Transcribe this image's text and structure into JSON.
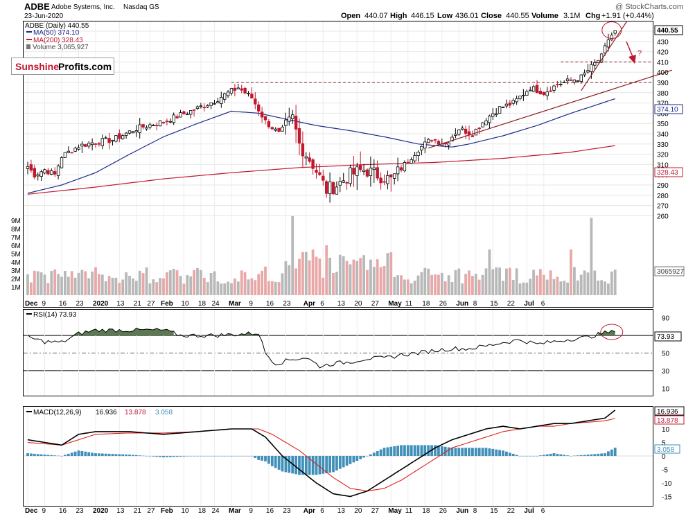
{
  "header": {
    "ticker": "ADBE",
    "company": "Adobe Systems, Inc.",
    "exchange": "Nasdaq GS",
    "date": "23-Jun-2020",
    "watermark": "@ StockCharts.com",
    "quote": {
      "open_label": "Open",
      "open": "440.07",
      "high_label": "High",
      "high": "446.15",
      "low_label": "Low",
      "low": "436.01",
      "close_label": "Close",
      "close": "440.55",
      "volume_label": "Volume",
      "volume": "3.1M",
      "chg_label": "Chg",
      "chg": "+1.91 (+0.44%)"
    }
  },
  "price_panel": {
    "legend": [
      {
        "text": "ADBE (Daily) 440.55",
        "color": "#000000"
      },
      {
        "text": "MA(50) 374.10",
        "color": "#1b2a8a"
      },
      {
        "text": "MA(200) 328.43",
        "color": "#c0182e"
      },
      {
        "text": "Volume 3,065,927",
        "color": "#444444"
      }
    ],
    "logo": {
      "part1": "Sunshine",
      "part2": "Profits.com"
    },
    "annotation": "?",
    "right_labels": [
      "440.55",
      "374.10",
      "328.43",
      "3065927"
    ],
    "volume_labels": [
      "9M",
      "8M",
      "7M",
      "6M",
      "5M",
      "4M",
      "3M",
      "2M",
      "1M"
    ]
  },
  "rsi_panel": {
    "legend": "RSI(14) 73.93",
    "value_label": "73.93",
    "ticks": [
      "90",
      "70",
      "50",
      "30",
      "10"
    ]
  },
  "macd_panel": {
    "legend_name": "MACD(12,26,9)",
    "macd": "16.936",
    "signal": "13.878",
    "hist": "3.058",
    "ticks": [
      "15",
      "10",
      "5",
      "0",
      "-5",
      "-10",
      "-15"
    ]
  },
  "date_labels": [
    "Dec",
    "9",
    "16",
    "23",
    "2020",
    "13",
    "21",
    "27",
    "Feb",
    "10",
    "18",
    "24",
    "Mar",
    "9",
    "16",
    "23",
    "Apr",
    "6",
    "13",
    "20",
    "27",
    "May",
    "11",
    "18",
    "26",
    "Jun",
    "8",
    "15",
    "22",
    "Jul",
    "6"
  ],
  "colors": {
    "up": "#000000",
    "down": "#c0182e",
    "ma50": "#1b2a8a",
    "ma200": "#c0182e",
    "vol_up": "#b8b8b8",
    "vol_down": "#e8a8a8",
    "rsi_fill": "#5b7a52",
    "macd_hist": "#3f8fb8",
    "trend": "#8b1a1a"
  },
  "chart_data": [
    {
      "type": "candlestick",
      "title": "ADBE (Daily)",
      "ylim": [
        250,
        450
      ],
      "y_ticks": [
        260,
        270,
        280,
        290,
        300,
        310,
        320,
        330,
        340,
        350,
        360,
        370,
        380,
        390,
        400,
        410,
        420,
        430,
        440
      ],
      "close_anchors": [
        [
          0,
          308
        ],
        [
          2,
          300
        ],
        [
          5,
          305
        ],
        [
          8,
          300
        ],
        [
          10,
          318
        ],
        [
          15,
          328
        ],
        [
          20,
          332
        ],
        [
          25,
          334
        ],
        [
          32,
          345
        ],
        [
          40,
          352
        ],
        [
          48,
          362
        ],
        [
          55,
          372
        ],
        [
          58,
          378
        ],
        [
          62,
          385
        ],
        [
          66,
          375
        ],
        [
          70,
          352
        ],
        [
          74,
          340
        ],
        [
          78,
          355
        ],
        [
          80,
          330
        ],
        [
          84,
          310
        ],
        [
          88,
          285
        ],
        [
          91,
          290
        ],
        [
          95,
          300
        ],
        [
          99,
          305
        ],
        [
          103,
          300
        ],
        [
          107,
          295
        ],
        [
          111,
          310
        ],
        [
          115,
          325
        ],
        [
          119,
          335
        ],
        [
          123,
          330
        ],
        [
          127,
          345
        ],
        [
          131,
          340
        ],
        [
          135,
          355
        ],
        [
          139,
          365
        ],
        [
          143,
          370
        ],
        [
          148,
          385
        ],
        [
          152,
          380
        ],
        [
          156,
          388
        ],
        [
          160,
          392
        ],
        [
          163,
          395
        ],
        [
          166,
          405
        ],
        [
          169,
          415
        ],
        [
          171,
          432
        ],
        [
          173,
          440.55
        ]
      ],
      "ma50_anchors": [
        [
          0,
          282
        ],
        [
          10,
          290
        ],
        [
          20,
          302
        ],
        [
          30,
          320
        ],
        [
          40,
          337
        ],
        [
          50,
          350
        ],
        [
          60,
          362
        ],
        [
          68,
          360
        ],
        [
          75,
          355
        ],
        [
          85,
          348
        ],
        [
          95,
          343
        ],
        [
          105,
          337
        ],
        [
          115,
          330
        ],
        [
          125,
          327
        ],
        [
          130,
          330
        ],
        [
          140,
          338
        ],
        [
          150,
          348
        ],
        [
          160,
          360
        ],
        [
          173,
          374.1
        ]
      ],
      "ma200_anchors": [
        [
          0,
          281
        ],
        [
          20,
          288
        ],
        [
          40,
          296
        ],
        [
          60,
          302
        ],
        [
          80,
          307
        ],
        [
          100,
          310
        ],
        [
          120,
          312
        ],
        [
          140,
          316
        ],
        [
          160,
          322
        ],
        [
          173,
          328.43
        ]
      ],
      "resistance_levels": [
        390,
        410
      ]
    },
    {
      "type": "bar",
      "title": "Volume",
      "ylim": [
        0,
        10000000
      ],
      "last_value": 3065927,
      "spike_days": [
        {
          "day": 78,
          "value": 9500000
        },
        {
          "day": 84,
          "value": 5500000
        },
        {
          "day": 88,
          "value": 6000000
        },
        {
          "day": 136,
          "value": 5500000
        },
        {
          "day": 160,
          "value": 5500000
        },
        {
          "day": 166,
          "value": 9300000
        }
      ]
    },
    {
      "type": "line",
      "title": "RSI(14)",
      "ylim": [
        0,
        100
      ],
      "reference_lines": [
        30,
        50,
        70
      ],
      "last_value": 73.93,
      "anchors": [
        [
          0,
          68
        ],
        [
          5,
          63
        ],
        [
          10,
          62
        ],
        [
          15,
          72
        ],
        [
          20,
          76
        ],
        [
          30,
          76
        ],
        [
          40,
          76
        ],
        [
          45,
          70
        ],
        [
          50,
          70
        ],
        [
          55,
          70
        ],
        [
          60,
          71
        ],
        [
          65,
          72
        ],
        [
          68,
          73
        ],
        [
          70,
          50
        ],
        [
          73,
          38
        ],
        [
          78,
          43
        ],
        [
          82,
          45
        ],
        [
          86,
          35
        ],
        [
          90,
          38
        ],
        [
          95,
          40
        ],
        [
          100,
          44
        ],
        [
          105,
          44
        ],
        [
          110,
          48
        ],
        [
          115,
          50
        ],
        [
          120,
          53
        ],
        [
          125,
          55
        ],
        [
          130,
          55
        ],
        [
          135,
          58
        ],
        [
          140,
          62
        ],
        [
          145,
          65
        ],
        [
          150,
          60
        ],
        [
          155,
          63
        ],
        [
          160,
          66
        ],
        [
          165,
          68
        ],
        [
          170,
          73
        ],
        [
          173,
          73.93
        ]
      ]
    },
    {
      "type": "line",
      "title": "MACD(12,26,9)",
      "ylim": [
        -17,
        19
      ],
      "series": [
        {
          "name": "MACD",
          "last_value": 16.936,
          "anchors": [
            [
              0,
              6
            ],
            [
              5,
              5
            ],
            [
              10,
              4
            ],
            [
              15,
              8
            ],
            [
              20,
              9
            ],
            [
              30,
              9
            ],
            [
              40,
              8
            ],
            [
              50,
              9
            ],
            [
              60,
              10
            ],
            [
              66,
              10
            ],
            [
              70,
              7
            ],
            [
              75,
              0
            ],
            [
              80,
              -5
            ],
            [
              85,
              -10
            ],
            [
              90,
              -14
            ],
            [
              95,
              -15
            ],
            [
              100,
              -13
            ],
            [
              105,
              -9
            ],
            [
              110,
              -5
            ],
            [
              115,
              -1
            ],
            [
              120,
              3
            ],
            [
              125,
              6
            ],
            [
              130,
              8
            ],
            [
              135,
              10
            ],
            [
              140,
              11
            ],
            [
              145,
              10
            ],
            [
              150,
              11
            ],
            [
              155,
              12
            ],
            [
              160,
              12
            ],
            [
              165,
              13
            ],
            [
              170,
              14
            ],
            [
              173,
              16.936
            ]
          ]
        },
        {
          "name": "Signal",
          "last_value": 13.878,
          "anchors": [
            [
              0,
              5
            ],
            [
              10,
              4
            ],
            [
              15,
              6
            ],
            [
              20,
              8
            ],
            [
              30,
              8.5
            ],
            [
              40,
              8.5
            ],
            [
              50,
              9
            ],
            [
              60,
              10
            ],
            [
              68,
              10
            ],
            [
              72,
              8
            ],
            [
              76,
              5
            ],
            [
              80,
              2
            ],
            [
              85,
              -3
            ],
            [
              90,
              -8
            ],
            [
              95,
              -12
            ],
            [
              100,
              -13
            ],
            [
              105,
              -12
            ],
            [
              110,
              -9
            ],
            [
              115,
              -5
            ],
            [
              120,
              -1
            ],
            [
              125,
              3
            ],
            [
              130,
              5
            ],
            [
              135,
              7
            ],
            [
              140,
              9
            ],
            [
              145,
              10
            ],
            [
              150,
              11
            ],
            [
              155,
              11
            ],
            [
              160,
              12
            ],
            [
              165,
              12.5
            ],
            [
              170,
              13
            ],
            [
              173,
              13.878
            ]
          ]
        },
        {
          "name": "Histogram",
          "last_value": 3.058
        }
      ]
    }
  ]
}
